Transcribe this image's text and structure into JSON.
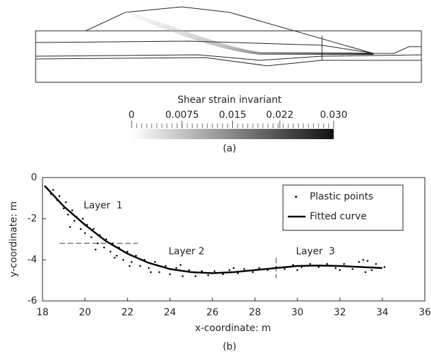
{
  "chart_data": [
    {
      "type": "colorbar",
      "title": "Shear strain invariant",
      "caption": "(a)",
      "clim": [
        0,
        0.03
      ],
      "ticks": [
        0,
        0.0075,
        0.015,
        0.022,
        {
          "value": 0.03,
          "label": "0.030"
        }
      ],
      "colors": [
        "#ffffff",
        "#111111"
      ]
    },
    {
      "type": "scatter",
      "caption": "(b)",
      "xlabel": "x-coordinate: m",
      "ylabel": "y-coordinate: m",
      "xlim": [
        18,
        36
      ],
      "ylim": [
        -6,
        0
      ],
      "xticks": [
        18,
        20,
        22,
        24,
        26,
        28,
        30,
        32,
        34,
        36
      ],
      "yticks": [
        -6,
        -4,
        -2,
        0
      ],
      "legend": "upper right",
      "annotations": [
        "Layer  1",
        "Layer 2",
        "Layer  3"
      ],
      "dividers": [
        {
          "x": [
            18.8,
            22.5
          ],
          "y": [
            -3.2,
            -3.2
          ]
        },
        {
          "x": [
            29,
            29
          ],
          "y": [
            -3.9,
            -4.9
          ]
        }
      ],
      "series": [
        {
          "name": "Plastic points",
          "color": "#000000",
          "mode": "points",
          "x": [
            18.2,
            18.4,
            18.5,
            18.7,
            18.8,
            19.0,
            19.1,
            19.2,
            19.3,
            19.4,
            19.5,
            19.6,
            19.8,
            19.9,
            20.0,
            20.1,
            20.3,
            20.4,
            20.5,
            20.6,
            20.7,
            20.9,
            21.0,
            21.2,
            21.3,
            21.4,
            21.5,
            21.6,
            21.8,
            22.0,
            22.1,
            22.2,
            22.4,
            22.6,
            22.8,
            23.0,
            23.1,
            23.3,
            23.5,
            23.8,
            24.0,
            24.3,
            24.5,
            24.6,
            24.9,
            25.2,
            25.5,
            25.8,
            26.1,
            26.5,
            26.8,
            27.0,
            27.2,
            27.5,
            27.9,
            28.2,
            28.6,
            29.0,
            29.4,
            29.8,
            30.0,
            30.2,
            30.6,
            31.0,
            31.4,
            31.8,
            32.0,
            32.2,
            32.6,
            32.9,
            33.1,
            33.2,
            33.3,
            33.5,
            33.7,
            33.9,
            34.1
          ],
          "values": [
            -0.5,
            -0.8,
            -0.6,
            -1.1,
            -0.9,
            -1.5,
            -1.2,
            -1.8,
            -2.4,
            -1.6,
            -2.1,
            -1.9,
            -2.5,
            -2.0,
            -2.7,
            -2.3,
            -2.9,
            -2.5,
            -3.5,
            -3.2,
            -2.8,
            -3.4,
            -3.0,
            -3.6,
            -3.2,
            -3.9,
            -3.8,
            -3.4,
            -4.0,
            -3.6,
            -4.3,
            -4.1,
            -3.8,
            -4.3,
            -4.0,
            -4.4,
            -4.6,
            -4.1,
            -4.6,
            -4.3,
            -4.7,
            -4.4,
            -4.25,
            -4.8,
            -4.5,
            -4.8,
            -4.55,
            -4.75,
            -4.55,
            -4.7,
            -4.5,
            -4.4,
            -4.65,
            -4.45,
            -4.6,
            -4.4,
            -4.5,
            -4.35,
            -4.45,
            -4.25,
            -4.5,
            -4.35,
            -4.2,
            -4.35,
            -4.2,
            -4.4,
            -4.5,
            -4.2,
            -4.45,
            -4.1,
            -4.0,
            -4.6,
            -4.05,
            -4.5,
            -4.2,
            -4.4,
            -4.35
          ]
        },
        {
          "name": "Fitted curve",
          "color": "#000000",
          "mode": "line",
          "x": [
            18.1,
            19,
            20,
            21,
            22,
            23,
            24,
            25,
            26,
            27,
            28,
            29,
            30,
            31,
            32,
            33,
            34
          ],
          "values": [
            -0.4,
            -1.4,
            -2.3,
            -3.1,
            -3.7,
            -4.15,
            -4.45,
            -4.6,
            -4.65,
            -4.6,
            -4.5,
            -4.4,
            -4.3,
            -4.28,
            -4.3,
            -4.35,
            -4.4
          ]
        }
      ]
    }
  ]
}
